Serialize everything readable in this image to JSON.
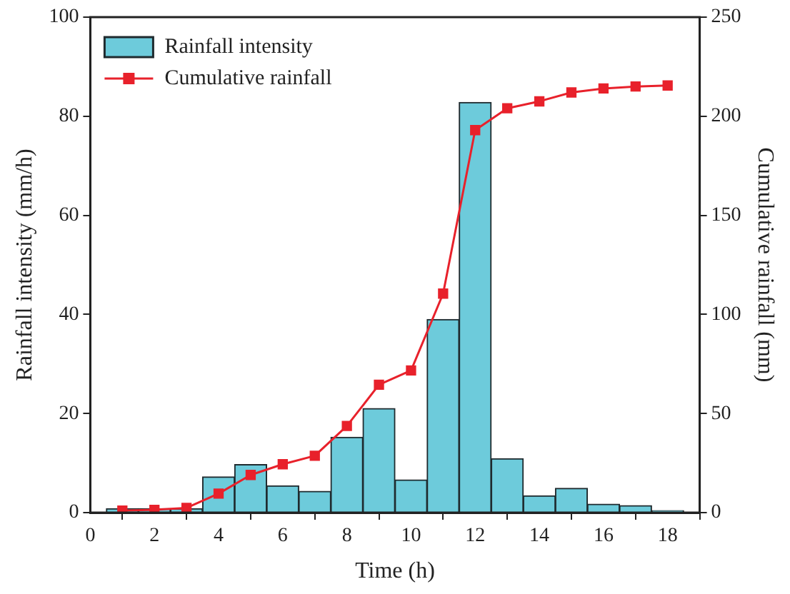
{
  "chart_data": {
    "type": "histogram",
    "xlabel": "Time (h)",
    "ylabel": "Rainfall intensity (mm/h)",
    "y2label": "Cumulative rainfall (mm)",
    "bins": [
      0.5,
      1.5,
      2.5,
      3.5,
      4.5,
      5.5,
      6.5,
      7.5,
      8.5,
      9.5,
      10.5,
      11.5,
      12.5,
      13.5,
      14.5,
      15.5,
      16.5,
      17.5,
      18.5
    ],
    "series": [
      {
        "name": "Rainfall intensity",
        "color": "#6dcbdb",
        "values": [
          0.8,
          0.8,
          0.8,
          7.2,
          9.7,
          5.4,
          4.3,
          15.2,
          21,
          6.6,
          39,
          82.8,
          10.9,
          3.4,
          4.9,
          1.7,
          1.4,
          0.4
        ]
      },
      {
        "name": "Cumulative rainfall",
        "type": "line",
        "axis": "y2",
        "color": "#e8212b",
        "x": [
          1,
          2,
          3,
          4,
          5,
          6,
          7,
          8,
          9,
          10,
          11,
          12,
          13,
          14,
          15,
          16,
          17,
          18
        ],
        "values": [
          1,
          1.4,
          2.4,
          9.6,
          19,
          24.4,
          28.7,
          43.7,
          64.5,
          71.7,
          110.5,
          193,
          204,
          207.5,
          212,
          214,
          215,
          215.5
        ]
      }
    ],
    "xlim": [
      0,
      19
    ],
    "xticks": [
      0,
      2,
      4,
      6,
      8,
      10,
      12,
      14,
      16,
      18
    ],
    "ylim": [
      0,
      100
    ],
    "yticks": [
      0,
      20,
      40,
      60,
      80,
      100
    ],
    "y2lim": [
      0,
      250
    ],
    "y2ticks": [
      0,
      50,
      100,
      150,
      200,
      250
    ],
    "legend": "top left",
    "marker": "square"
  }
}
